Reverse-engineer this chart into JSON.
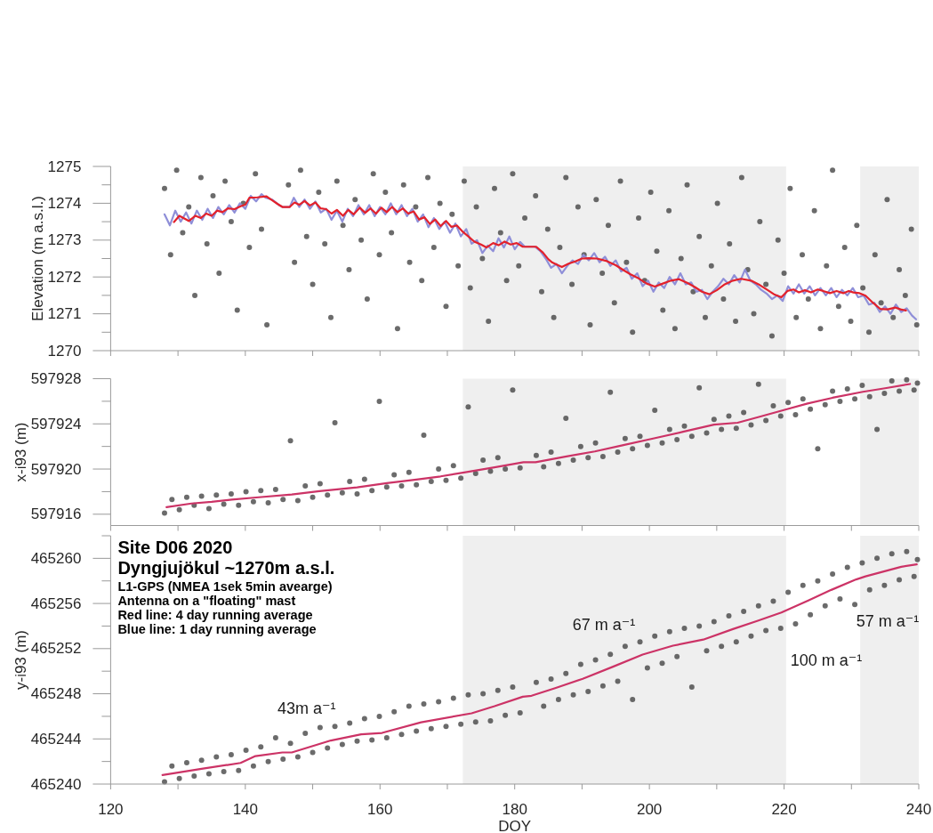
{
  "chart_data": [
    {
      "type": "line",
      "ylabel": "Elevation (m a.s.l.)",
      "xlim": [
        120,
        240
      ],
      "xticks": [
        120,
        {
          "value": 130,
          "label": null
        },
        140,
        {
          "value": 150,
          "label": null
        },
        160,
        {
          "value": 170,
          "label": null
        },
        180,
        {
          "value": 190,
          "label": null
        },
        200,
        {
          "value": 210,
          "label": null
        },
        220,
        {
          "value": 230,
          "label": null
        },
        240
      ],
      "ylim": [
        1270,
        1275
      ],
      "yticks": [
        1270,
        {
          "value": 1270.5,
          "label": null
        },
        1271,
        {
          "value": 1271.5,
          "label": null
        },
        1272,
        {
          "value": 1272.5,
          "label": null
        },
        1273,
        {
          "value": 1273.5,
          "label": null
        },
        1274,
        {
          "value": 1274.5,
          "label": null
        },
        1275
      ],
      "tick_labels": "y",
      "bands": [
        {
          "axis": "x",
          "from": 172.3,
          "to": 220.3,
          "color": "#efefef"
        },
        {
          "axis": "x",
          "from": 231.3,
          "to": 240,
          "color": "#efefef"
        }
      ],
      "series": [
        {
          "type": "scatter",
          "color": "#3a3a3a",
          "marker": "circle",
          "x": [
            128.0,
            128.9,
            129.8,
            130.7,
            131.6,
            132.5,
            133.4,
            134.3,
            135.2,
            136.1,
            137.0,
            137.9,
            138.8,
            139.7,
            140.6,
            141.5,
            142.4,
            143.2,
            146.4,
            147.3,
            148.2,
            149.1,
            150.0,
            150.9,
            151.8,
            152.7,
            153.6,
            154.5,
            155.4,
            156.3,
            157.2,
            158.1,
            159.0,
            159.9,
            160.8,
            161.7,
            162.6,
            163.5,
            164.4,
            165.3,
            166.2,
            167.1,
            168.0,
            168.9,
            169.8,
            170.7,
            171.6,
            172.5,
            173.4,
            174.3,
            175.2,
            176.1,
            177.0,
            177.9,
            178.8,
            179.7,
            180.6,
            181.5,
            183.1,
            184.0,
            184.9,
            185.8,
            186.7,
            187.6,
            188.5,
            189.4,
            190.3,
            191.2,
            192.1,
            193.0,
            193.9,
            194.8,
            195.7,
            196.6,
            197.5,
            198.4,
            199.3,
            200.2,
            201.1,
            202.0,
            202.9,
            203.8,
            204.7,
            205.6,
            206.5,
            207.4,
            208.3,
            209.2,
            210.1,
            211.0,
            211.9,
            212.8,
            213.7,
            214.6,
            215.5,
            216.4,
            217.3,
            218.2,
            219.1,
            220.0,
            220.9,
            221.8,
            222.7,
            223.6,
            224.5,
            225.4,
            226.3,
            227.2,
            228.1,
            229.0,
            229.9,
            230.8,
            231.7,
            232.6,
            233.5,
            234.4,
            235.3,
            236.2,
            237.1,
            238.0,
            238.9,
            239.7
          ],
          "values": [
            1274.4,
            1272.6,
            1274.9,
            1273.2,
            1273.9,
            1271.5,
            1274.7,
            1272.9,
            1274.2,
            1272.1,
            1274.6,
            1273.5,
            1271.1,
            1274.0,
            1272.8,
            1274.8,
            1273.3,
            1270.7,
            1274.5,
            1272.4,
            1274.9,
            1273.1,
            1271.8,
            1274.3,
            1272.9,
            1270.9,
            1274.6,
            1273.4,
            1272.2,
            1274.1,
            1273.0,
            1271.4,
            1274.8,
            1272.6,
            1274.3,
            1273.2,
            1270.6,
            1274.5,
            1272.4,
            1273.9,
            1271.9,
            1274.7,
            1272.8,
            1274.0,
            1271.2,
            1273.7,
            1272.3,
            1274.6,
            1271.7,
            1273.9,
            1272.5,
            1270.8,
            1274.4,
            1273.2,
            1271.9,
            1274.8,
            1272.3,
            1273.6,
            1274.2,
            1271.6,
            1273.3,
            1270.9,
            1272.8,
            1274.7,
            1271.8,
            1273.9,
            1272.6,
            1270.7,
            1274.1,
            1272.1,
            1273.4,
            1271.3,
            1274.6,
            1272.4,
            1270.5,
            1273.6,
            1271.9,
            1274.3,
            1272.7,
            1271.1,
            1273.8,
            1270.6,
            1272.5,
            1274.5,
            1271.6,
            1273.1,
            1270.9,
            1272.3,
            1274.0,
            1271.4,
            1272.9,
            1270.8,
            1274.7,
            1272.2,
            1271.0,
            1273.5,
            1271.8,
            1270.4,
            1273.0,
            1272.1,
            1274.4,
            1270.9,
            1272.6,
            1271.4,
            1273.8,
            1270.6,
            1272.3,
            1274.9,
            1271.2,
            1272.8,
            1270.8,
            1273.4,
            1271.7,
            1270.5,
            1272.6,
            1271.3,
            1274.1,
            1270.9,
            1272.2,
            1271.5,
            1273.3,
            1270.7
          ]
        },
        {
          "color": "#8f8fd8",
          "x": [
            128.0,
            128.8,
            129.6,
            130.4,
            131.2,
            132.0,
            132.8,
            133.6,
            134.4,
            135.2,
            136.0,
            136.8,
            137.6,
            138.4,
            139.2,
            140.0,
            140.8,
            141.6,
            142.4,
            143.0,
            144.0,
            145.0,
            145.5,
            146.6,
            147.2,
            148.0,
            148.8,
            149.6,
            150.4,
            151.2,
            152.0,
            152.8,
            153.6,
            154.4,
            155.2,
            156.0,
            156.8,
            157.6,
            158.4,
            159.2,
            160.0,
            160.8,
            161.6,
            162.4,
            163.2,
            164.0,
            164.8,
            165.6,
            166.4,
            167.2,
            168.0,
            168.8,
            169.6,
            170.4,
            171.2,
            172.0,
            172.8,
            173.6,
            174.4,
            175.2,
            176.0,
            176.8,
            177.6,
            178.4,
            179.2,
            180.0,
            180.8,
            181.5,
            183.0,
            183.8,
            184.6,
            185.4,
            186.2,
            187.0,
            187.8,
            188.6,
            189.4,
            190.2,
            191.0,
            191.8,
            192.6,
            193.4,
            194.2,
            195.0,
            195.8,
            196.6,
            197.4,
            198.2,
            199.0,
            199.8,
            200.6,
            201.4,
            202.2,
            203.0,
            203.8,
            204.6,
            205.4,
            206.2,
            207.0,
            207.8,
            208.6,
            209.4,
            210.2,
            211.0,
            211.8,
            212.6,
            213.4,
            214.2,
            215.0,
            215.8,
            216.6,
            217.4,
            218.2,
            219.0,
            219.8,
            220.6,
            221.4,
            222.2,
            223.0,
            223.8,
            224.6,
            225.4,
            226.2,
            227.0,
            227.8,
            228.6,
            229.4,
            230.2,
            231.0,
            231.8,
            232.6,
            233.4,
            234.2,
            235.0,
            235.8,
            236.6,
            237.4,
            238.2,
            239.0,
            239.6
          ],
          "values": [
            1273.7,
            1273.4,
            1273.8,
            1273.5,
            1273.75,
            1273.45,
            1273.8,
            1273.55,
            1273.85,
            1273.6,
            1273.9,
            1273.7,
            1273.95,
            1273.75,
            1274.0,
            1273.85,
            1274.2,
            1274.05,
            1274.25,
            1274.15,
            1274.1,
            1273.95,
            1273.9,
            1273.9,
            1274.15,
            1273.9,
            1274.1,
            1273.85,
            1274.05,
            1273.75,
            1273.85,
            1273.55,
            1273.8,
            1273.5,
            1273.85,
            1273.65,
            1273.95,
            1273.7,
            1273.95,
            1273.65,
            1273.9,
            1273.7,
            1274.0,
            1273.7,
            1273.95,
            1273.65,
            1273.85,
            1273.5,
            1273.7,
            1273.35,
            1273.6,
            1273.3,
            1273.5,
            1273.2,
            1273.45,
            1273.1,
            1273.3,
            1272.9,
            1273.0,
            1272.65,
            1272.85,
            1272.7,
            1273.05,
            1272.8,
            1273.1,
            1272.75,
            1272.95,
            1272.82,
            1272.82,
            1272.7,
            1272.5,
            1272.25,
            1272.35,
            1272.1,
            1272.3,
            1272.45,
            1272.35,
            1272.6,
            1272.45,
            1272.65,
            1272.4,
            1272.55,
            1272.3,
            1272.45,
            1272.15,
            1272.25,
            1271.95,
            1272.1,
            1271.75,
            1271.9,
            1271.6,
            1271.85,
            1271.7,
            1272.0,
            1271.8,
            1272.1,
            1271.8,
            1271.85,
            1271.6,
            1271.65,
            1271.4,
            1271.6,
            1271.75,
            1271.95,
            1271.8,
            1272.05,
            1271.85,
            1272.2,
            1271.9,
            1271.8,
            1271.65,
            1271.55,
            1271.4,
            1271.5,
            1271.35,
            1271.75,
            1271.55,
            1271.8,
            1271.55,
            1271.75,
            1271.5,
            1271.7,
            1271.5,
            1271.7,
            1271.45,
            1271.65,
            1271.5,
            1271.7,
            1271.45,
            1271.5,
            1271.25,
            1271.3,
            1271.05,
            1271.2,
            1271.0,
            1271.25,
            1271.05,
            1271.15,
            1270.95,
            1270.85
          ]
        },
        {
          "color": "#e3212b",
          "x": [
            129.4,
            130.2,
            131.0,
            131.6,
            132.6,
            133.4,
            134.2,
            135.0,
            135.8,
            136.6,
            137.4,
            138.4,
            139.3,
            140.0,
            140.6,
            141.8,
            143.1,
            144.0,
            144.8,
            145.5,
            146.6,
            147.3,
            148.0,
            148.8,
            149.6,
            150.4,
            151.2,
            152.0,
            152.8,
            153.6,
            154.5,
            155.3,
            156.1,
            157.0,
            157.8,
            158.6,
            159.4,
            160.2,
            161.0,
            161.8,
            162.6,
            163.4,
            164.2,
            165.0,
            165.8,
            166.6,
            167.4,
            168.2,
            169.0,
            169.8,
            170.6,
            171.4,
            172.2,
            173.0,
            174.0,
            175.0,
            175.8,
            176.8,
            177.6,
            178.5,
            179.4,
            180.3,
            181.2,
            183.2,
            184.2,
            185.0,
            185.6,
            187.0,
            188.0,
            189.0,
            190.0,
            191.0,
            192.2,
            193.7,
            195.0,
            196.2,
            197.2,
            198.4,
            199.6,
            200.8,
            202.0,
            203.2,
            204.4,
            205.6,
            206.8,
            207.8,
            208.9,
            210.0,
            211.2,
            212.4,
            213.6,
            215.1,
            216.4,
            217.6,
            218.6,
            219.6,
            220.5,
            221.4,
            222.2,
            223.1,
            224.0,
            225.0,
            225.8,
            226.8,
            227.8,
            228.8,
            229.6,
            230.3,
            231.2,
            232.1,
            233.2,
            234.3,
            235.4,
            236.5,
            237.3,
            238.1
          ],
          "values": [
            1273.49,
            1273.66,
            1273.58,
            1273.52,
            1273.66,
            1273.6,
            1273.72,
            1273.66,
            1273.8,
            1273.76,
            1273.86,
            1273.84,
            1273.92,
            1273.96,
            1274.15,
            1274.16,
            1274.19,
            1274.08,
            1273.98,
            1273.9,
            1273.9,
            1274.02,
            1273.96,
            1274.06,
            1273.94,
            1274.02,
            1273.86,
            1273.84,
            1273.72,
            1273.82,
            1273.66,
            1273.82,
            1273.7,
            1273.88,
            1273.74,
            1273.86,
            1273.72,
            1273.88,
            1273.76,
            1273.9,
            1273.76,
            1273.86,
            1273.72,
            1273.78,
            1273.56,
            1273.62,
            1273.44,
            1273.56,
            1273.38,
            1273.52,
            1273.36,
            1273.4,
            1273.24,
            1273.12,
            1272.96,
            1272.88,
            1272.8,
            1272.92,
            1272.86,
            1272.96,
            1272.88,
            1272.92,
            1272.82,
            1272.82,
            1272.66,
            1272.48,
            1272.39,
            1272.27,
            1272.36,
            1272.42,
            1272.5,
            1272.51,
            1272.5,
            1272.43,
            1272.32,
            1272.18,
            1272.07,
            1271.96,
            1271.82,
            1271.74,
            1271.82,
            1271.9,
            1271.94,
            1271.84,
            1271.72,
            1271.6,
            1271.53,
            1271.64,
            1271.8,
            1271.9,
            1271.95,
            1271.9,
            1271.78,
            1271.64,
            1271.52,
            1271.45,
            1271.62,
            1271.66,
            1271.58,
            1271.64,
            1271.58,
            1271.66,
            1271.62,
            1271.56,
            1271.62,
            1271.56,
            1271.62,
            1271.58,
            1271.56,
            1271.49,
            1271.3,
            1271.13,
            1271.12,
            1271.17,
            1271.12,
            1271.09
          ]
        }
      ]
    },
    {
      "type": "line",
      "ylabel": "x-i93 (m)",
      "xlim": [
        120,
        240
      ],
      "xticks": [
        120,
        {
          "value": 130,
          "label": null
        },
        140,
        {
          "value": 150,
          "label": null
        },
        160,
        {
          "value": 170,
          "label": null
        },
        180,
        {
          "value": 190,
          "label": null
        },
        200,
        {
          "value": 210,
          "label": null
        },
        220,
        {
          "value": 230,
          "label": null
        },
        240
      ],
      "ylim": [
        597915,
        597928
      ],
      "yticks": [
        597916,
        {
          "value": 597918,
          "label": null
        },
        597920,
        {
          "value": 597922,
          "label": null
        },
        597924,
        {
          "value": 597926,
          "label": null
        },
        597928
      ],
      "tick_labels": "y",
      "bands": [
        {
          "axis": "x",
          "from": 172.3,
          "to": 220.3,
          "color": "#efefef"
        },
        {
          "axis": "x",
          "from": 231.3,
          "to": 240,
          "color": "#efefef"
        }
      ],
      "series": [
        {
          "type": "scatter",
          "color": "#3a3a3a",
          "marker": "circle",
          "x": [
            128.0,
            129.1,
            130.2,
            131.3,
            132.4,
            133.5,
            134.6,
            135.7,
            136.8,
            137.9,
            139.0,
            140.1,
            141.2,
            142.3,
            143.4,
            144.5,
            145.6,
            146.7,
            147.8,
            148.9,
            150.0,
            151.1,
            152.2,
            153.3,
            154.4,
            155.5,
            156.6,
            157.7,
            158.8,
            159.9,
            161.0,
            162.1,
            163.2,
            164.3,
            165.4,
            166.5,
            167.6,
            168.7,
            169.8,
            170.9,
            172.0,
            173.1,
            174.2,
            175.3,
            176.4,
            177.5,
            178.6,
            179.7,
            180.8,
            183.2,
            184.3,
            185.4,
            186.5,
            187.6,
            188.7,
            189.8,
            190.9,
            192.0,
            193.1,
            194.2,
            195.3,
            196.4,
            197.5,
            198.6,
            199.7,
            200.8,
            201.9,
            203.0,
            204.1,
            205.2,
            206.3,
            207.4,
            208.5,
            209.6,
            210.7,
            211.8,
            212.9,
            214.0,
            215.1,
            216.2,
            217.3,
            218.4,
            219.5,
            220.6,
            221.7,
            222.8,
            223.9,
            225.0,
            226.1,
            227.2,
            228.3,
            229.4,
            230.5,
            231.6,
            232.7,
            233.8,
            234.9,
            236.0,
            237.1,
            238.2,
            239.3,
            239.8
          ],
          "values": [
            597916.1,
            597917.3,
            597916.4,
            597917.5,
            597916.8,
            597917.6,
            597916.5,
            597917.7,
            597916.9,
            597917.8,
            597916.8,
            597918.0,
            597917.1,
            597918.1,
            597917.0,
            597918.2,
            597917.3,
            597922.5,
            597917.2,
            597918.5,
            597917.5,
            597918.7,
            597917.7,
            597924.1,
            597917.9,
            597918.9,
            597917.8,
            597919.1,
            597918.1,
            597926.0,
            597918.4,
            597919.5,
            597918.5,
            597919.7,
            597918.6,
            597923.0,
            597918.9,
            597920.0,
            597919.0,
            597920.3,
            597919.2,
            597925.5,
            597919.6,
            597920.8,
            597919.8,
            597921.0,
            597920.0,
            597927.0,
            597920.1,
            597921.2,
            597920.2,
            597921.5,
            597920.5,
            597924.5,
            597920.8,
            597922.0,
            597921.0,
            597922.3,
            597921.1,
            597926.8,
            597921.5,
            597922.7,
            597921.8,
            597922.9,
            597922.1,
            597925.2,
            597922.3,
            597923.5,
            597922.6,
            597923.8,
            597922.9,
            597927.2,
            597923.2,
            597924.4,
            597923.5,
            597924.7,
            597923.6,
            597925.0,
            597923.9,
            597927.5,
            597924.3,
            597925.6,
            597924.7,
            597925.9,
            597924.8,
            597926.2,
            597925.3,
            597921.8,
            597925.7,
            597926.9,
            597926.0,
            597927.1,
            597926.2,
            597927.4,
            597926.4,
            597923.5,
            597926.7,
            597927.8,
            597926.9,
            597927.9,
            597927.0,
            597927.6
          ]
        },
        {
          "color": "#cc3366",
          "x": [
            128.3,
            132.0,
            135.0,
            138.0,
            141.6,
            146.9,
            151.0,
            156.6,
            161.0,
            165.4,
            169.0,
            172.5,
            177.0,
            181.3,
            183.1,
            187.5,
            191.9,
            196.0,
            200.7,
            205.0,
            209.6,
            213.1,
            216.5,
            220.2,
            223.5,
            227.2,
            231.7,
            235.0,
            238.7
          ],
          "values": [
            597916.63,
            597916.95,
            597917.1,
            597917.3,
            597917.48,
            597917.75,
            597918.05,
            597918.38,
            597918.75,
            597919.07,
            597919.35,
            597919.7,
            597920.15,
            597920.6,
            597920.6,
            597921.1,
            597921.56,
            597922.1,
            597922.72,
            597923.3,
            597923.93,
            597924.1,
            597924.65,
            597925.26,
            597925.8,
            597926.31,
            597926.84,
            597927.15,
            597927.53
          ]
        }
      ]
    },
    {
      "type": "line",
      "title": "Site D06 2020",
      "subtitle": "Dyngjujökul ~1270m a.s.l.",
      "xlabel": "DOY",
      "ylabel": "y-i93 (m)",
      "xlim": [
        120,
        240
      ],
      "xticks": [
        120,
        {
          "value": 130,
          "label": null
        },
        140,
        {
          "value": 150,
          "label": null
        },
        160,
        {
          "value": 170,
          "label": null
        },
        180,
        {
          "value": 190,
          "label": null
        },
        200,
        {
          "value": 210,
          "label": null
        },
        220,
        {
          "value": 230,
          "label": null
        },
        240
      ],
      "ylim": [
        465240,
        465262
      ],
      "yticks": [
        465240,
        {
          "value": 465242,
          "label": null
        },
        465244,
        {
          "value": 465246,
          "label": null
        },
        465248,
        {
          "value": 465250,
          "label": null
        },
        465252,
        {
          "value": 465254,
          "label": null
        },
        465256,
        {
          "value": 465258,
          "label": null
        },
        465260,
        {
          "value": 465262,
          "label": null
        }
      ],
      "bands": [
        {
          "axis": "x",
          "from": 172.3,
          "to": 220.3,
          "color": "#efefef"
        },
        {
          "axis": "x",
          "from": 231.3,
          "to": 240,
          "color": "#efefef"
        }
      ],
      "annotations": [
        "L1-GPS (NMEA 1sek 5min avearge)",
        "Antenna on a \"floating\" mast",
        "Red line: 4 day running average",
        "Blue line: 1 day running average",
        "43m a⁻¹",
        "67 m a⁻¹",
        "100 m a⁻¹",
        "57 m a⁻¹"
      ],
      "series": [
        {
          "type": "scatter",
          "color": "#3a3a3a",
          "marker": "circle",
          "x": [
            128.0,
            129.1,
            130.2,
            131.3,
            132.4,
            133.5,
            134.6,
            135.7,
            136.8,
            137.9,
            139.0,
            140.1,
            141.2,
            142.3,
            143.4,
            144.5,
            145.6,
            146.7,
            147.8,
            148.9,
            150.0,
            151.1,
            152.2,
            153.3,
            154.4,
            155.5,
            156.6,
            157.7,
            158.8,
            159.9,
            161.0,
            162.1,
            163.2,
            164.3,
            165.4,
            166.5,
            167.6,
            168.7,
            169.8,
            170.9,
            172.0,
            173.1,
            174.2,
            175.3,
            176.4,
            177.5,
            178.6,
            179.7,
            180.8,
            183.2,
            184.3,
            185.4,
            186.5,
            187.6,
            188.7,
            189.8,
            190.9,
            192.0,
            193.1,
            194.2,
            195.3,
            196.4,
            197.5,
            198.6,
            199.7,
            200.8,
            201.9,
            203.0,
            204.1,
            205.2,
            206.3,
            207.4,
            208.5,
            209.6,
            210.7,
            211.8,
            212.9,
            214.0,
            215.1,
            216.2,
            217.3,
            218.4,
            219.5,
            220.6,
            221.7,
            222.8,
            223.9,
            225.0,
            226.1,
            227.2,
            228.3,
            229.4,
            230.5,
            231.6,
            232.7,
            233.8,
            234.9,
            236.0,
            237.1,
            238.2,
            239.3,
            239.8
          ],
          "values": [
            465240.2,
            465241.6,
            465240.5,
            465241.9,
            465240.7,
            465242.1,
            465240.9,
            465242.4,
            465241.1,
            465242.6,
            465241.2,
            465243.0,
            465241.6,
            465243.3,
            465242.0,
            465244.1,
            465242.2,
            465243.6,
            465242.4,
            465244.5,
            465242.8,
            465245.0,
            465243.2,
            465245.1,
            465243.5,
            465245.4,
            465243.8,
            465245.8,
            465243.9,
            465246.0,
            465244.1,
            465246.4,
            465244.4,
            465246.9,
            465244.7,
            465247.1,
            465244.9,
            465247.3,
            465245.1,
            465247.6,
            465245.3,
            465247.9,
            465245.5,
            465248.0,
            465245.6,
            465248.3,
            465246.1,
            465248.6,
            465246.3,
            465249.0,
            465246.9,
            465249.3,
            465247.5,
            465249.8,
            465247.9,
            465250.6,
            465248.2,
            465251.0,
            465248.7,
            465251.5,
            465249.1,
            465252.2,
            465247.5,
            465252.6,
            465250.3,
            465253.1,
            465250.7,
            465253.5,
            465251.3,
            465253.8,
            465248.6,
            465254.0,
            465251.8,
            465254.4,
            465252.2,
            465254.9,
            465252.6,
            465255.3,
            465253.1,
            465255.8,
            465253.6,
            465256.2,
            465253.8,
            465257.0,
            465254.2,
            465257.6,
            465255.0,
            465258.0,
            465255.8,
            465258.6,
            465256.4,
            465259.2,
            465255.9,
            465259.6,
            465257.2,
            465260.0,
            465257.6,
            465260.4,
            465258.1,
            465260.6,
            465258.4,
            465259.9
          ]
        },
        {
          "color": "#cc3366",
          "x": [
            127.7,
            133.5,
            139.3,
            141.5,
            145.5,
            146.9,
            152.7,
            157.2,
            160.3,
            166.1,
            173.6,
            177.0,
            181.2,
            182.5,
            186.0,
            190.1,
            194.6,
            199.0,
            203.5,
            208.0,
            212.4,
            216.0,
            219.6,
            223.6,
            227.0,
            230.7,
            232.1,
            237.4,
            239.7
          ],
          "values": [
            465240.8,
            465241.35,
            465241.87,
            465242.48,
            465242.8,
            465242.8,
            465243.86,
            465244.4,
            465244.53,
            465245.47,
            465246.27,
            465246.9,
            465247.74,
            465247.82,
            465248.5,
            465249.33,
            465250.4,
            465251.47,
            465252.26,
            465252.8,
            465253.73,
            465254.45,
            465255.2,
            465256.26,
            465257.2,
            465258.13,
            465258.4,
            465259.25,
            465259.46
          ]
        }
      ]
    }
  ]
}
